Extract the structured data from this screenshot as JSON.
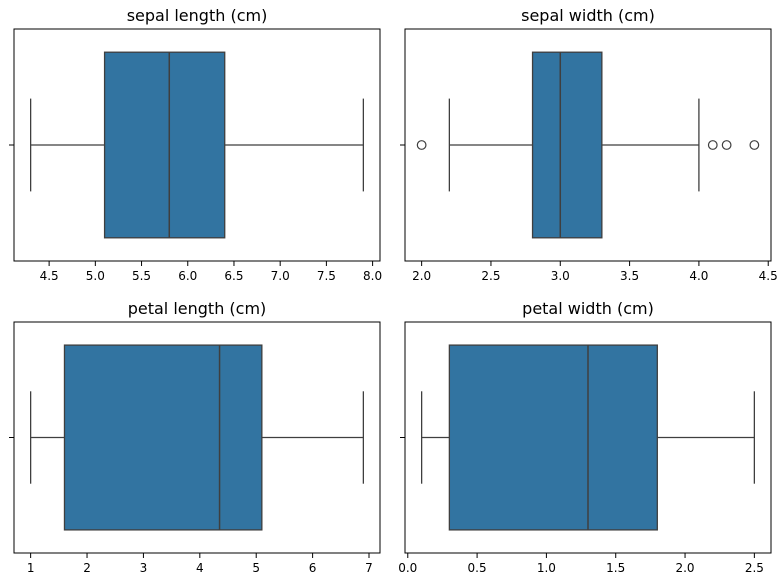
{
  "chart_data": [
    {
      "type": "box",
      "title": "sepal length (cm)",
      "xlim": [
        4.12,
        8.08
      ],
      "ticks": [
        4.5,
        5.0,
        5.5,
        6.0,
        6.5,
        7.0,
        7.5,
        8.0
      ],
      "tick_labels": [
        "4.5",
        "5.0",
        "5.5",
        "6.0",
        "6.5",
        "7.0",
        "7.5",
        "8.0"
      ],
      "whisker_low": 4.3,
      "q1": 5.1,
      "median": 5.8,
      "q3": 6.4,
      "whisker_high": 7.9,
      "outliers": []
    },
    {
      "type": "box",
      "title": "sepal width (cm)",
      "xlim": [
        1.88,
        4.52
      ],
      "ticks": [
        2.0,
        2.5,
        3.0,
        3.5,
        4.0,
        4.5
      ],
      "tick_labels": [
        "2.0",
        "2.5",
        "3.0",
        "3.5",
        "4.0",
        "4.5"
      ],
      "whisker_low": 2.2,
      "q1": 2.8,
      "median": 3.0,
      "q3": 3.3,
      "whisker_high": 4.0,
      "outliers": [
        2.0,
        4.1,
        4.2,
        4.4
      ]
    },
    {
      "type": "box",
      "title": "petal length (cm)",
      "xlim": [
        0.705,
        7.195
      ],
      "ticks": [
        1,
        2,
        3,
        4,
        5,
        6,
        7
      ],
      "tick_labels": [
        "1",
        "2",
        "3",
        "4",
        "5",
        "6",
        "7"
      ],
      "whisker_low": 1.0,
      "q1": 1.6,
      "median": 4.35,
      "q3": 5.1,
      "whisker_high": 6.9,
      "outliers": []
    },
    {
      "type": "box",
      "title": "petal width (cm)",
      "xlim": [
        -0.02,
        2.62
      ],
      "ticks": [
        0.0,
        0.5,
        1.0,
        1.5,
        2.0,
        2.5
      ],
      "tick_labels": [
        "0.0",
        "0.5",
        "1.0",
        "1.5",
        "2.0",
        "2.5"
      ],
      "whisker_low": 0.1,
      "q1": 0.3,
      "median": 1.3,
      "q3": 1.8,
      "whisker_high": 2.5,
      "outliers": []
    }
  ],
  "colors": {
    "box_fill": "#3274a1",
    "line": "#3f3f3f",
    "axes": "#000000"
  }
}
